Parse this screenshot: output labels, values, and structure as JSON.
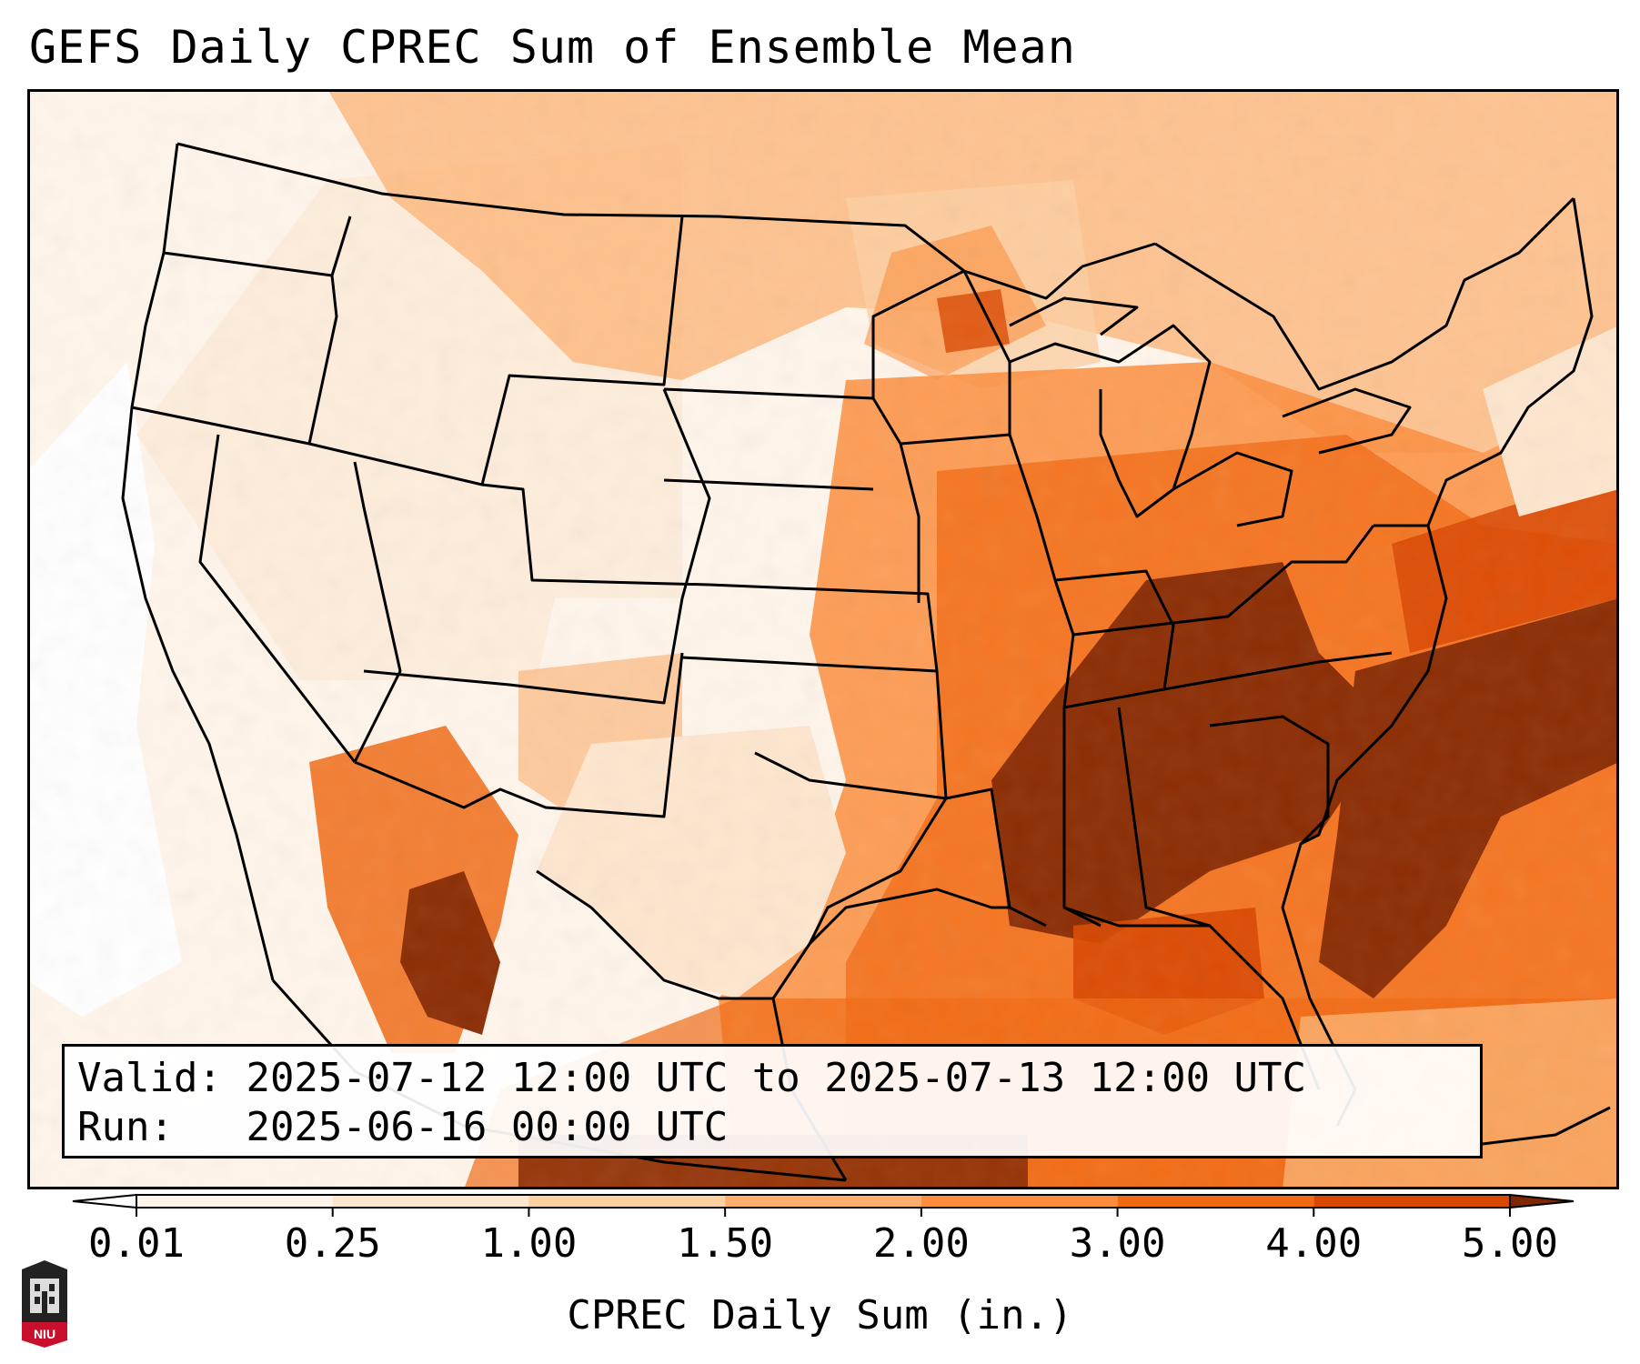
{
  "title": "GEFS Daily CPREC Sum of Ensemble Mean",
  "info": {
    "valid_label": "Valid:",
    "valid_value": "2025-07-12 12:00 UTC to 2025-07-13 12:00 UTC",
    "run_label": "Run:",
    "run_value": "2025-06-16 00:00 UTC"
  },
  "colorbar": {
    "label": "CPREC Daily Sum (in.)",
    "ticks": [
      "0.01",
      "0.25",
      "1.00",
      "1.50",
      "2.00",
      "3.00",
      "4.00",
      "5.00"
    ],
    "colors": [
      "#fff5eb",
      "#fee6ce",
      "#fdd0a2",
      "#fdae6b",
      "#fd8d3c",
      "#f16913",
      "#d94801",
      "#8c2d04"
    ],
    "extend_low_color": "#ffffff",
    "extend_high_color": "#7f2704"
  },
  "logo": {
    "text": "NIU",
    "color": "#c8102e"
  },
  "map": {
    "projection": "lambert-conformal",
    "region": "CONUS",
    "background_color": "#fff5eb",
    "boundary_color": "#000000"
  }
}
